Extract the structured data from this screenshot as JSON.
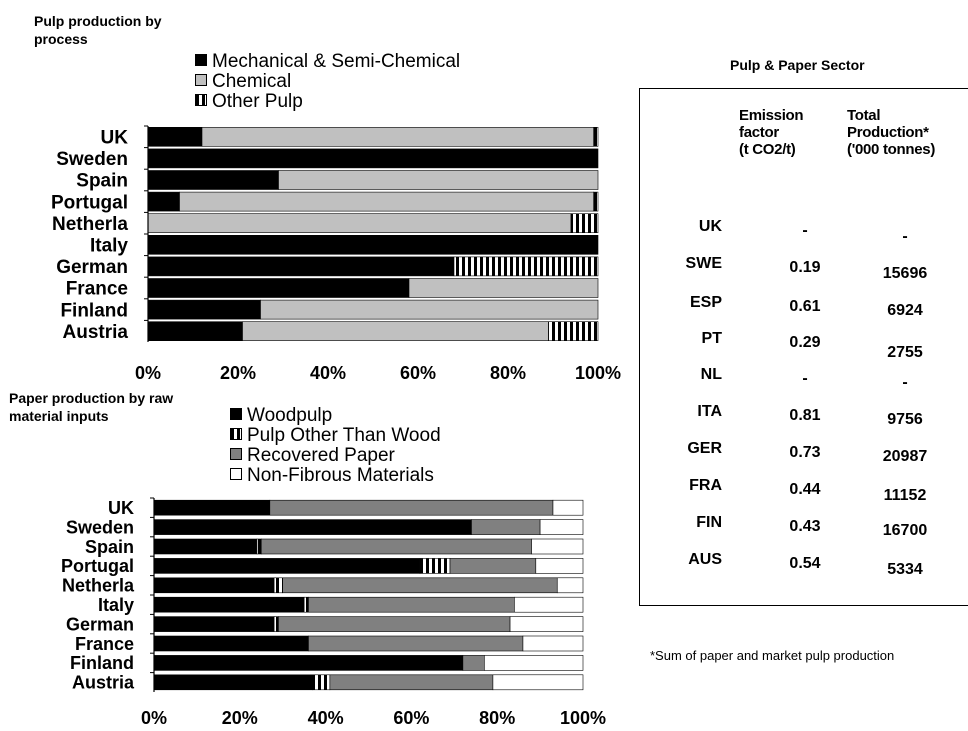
{
  "chart_data": [
    {
      "type": "bar",
      "stacked": true,
      "orientation": "horizontal",
      "title": "Pulp production by process",
      "categories": [
        "UK",
        "Sweden",
        "Spain",
        "Portugal",
        "Netherla",
        "Italy",
        "German",
        "France",
        "Finland",
        "Austria"
      ],
      "series": [
        {
          "name": "Mechanical & Semi-Chemical",
          "color": "#000000",
          "values": [
            12,
            100,
            29,
            7,
            0,
            100,
            68,
            58,
            25,
            21
          ]
        },
        {
          "name": "Chemical",
          "color": "#c0c0c0",
          "values": [
            87,
            0,
            71,
            92,
            94,
            0,
            0,
            42,
            75,
            68
          ]
        },
        {
          "name": "Other Pulp",
          "color": "stripe",
          "values": [
            1,
            0,
            0,
            1,
            6,
            0,
            32,
            0,
            0,
            11
          ]
        }
      ],
      "x_ticks": [
        "0%",
        "20%",
        "40%",
        "60%",
        "80%",
        "100%"
      ],
      "xlim": [
        0,
        100
      ],
      "grid": false
    },
    {
      "type": "bar",
      "stacked": true,
      "orientation": "horizontal",
      "title": "Paper production by raw material inputs",
      "categories": [
        "UK",
        "Sweden",
        "Spain",
        "Portugal",
        "Netherla",
        "Italy",
        "German",
        "France",
        "Finland",
        "Austria"
      ],
      "series": [
        {
          "name": "Woodpulp",
          "color": "#000000",
          "values": [
            27,
            74,
            24,
            62,
            28,
            35,
            28,
            36,
            72,
            37
          ]
        },
        {
          "name": "Pulp Other Than Wood",
          "color": "stripe",
          "values": [
            0,
            0,
            1,
            7,
            2,
            1,
            1,
            0,
            0,
            4
          ]
        },
        {
          "name": "Recovered Paper",
          "color": "#808080",
          "values": [
            66,
            16,
            63,
            20,
            64,
            48,
            54,
            50,
            5,
            38
          ]
        },
        {
          "name": "Non-Fibrous Materials",
          "color": "#ffffff",
          "values": [
            7,
            10,
            12,
            11,
            6,
            16,
            17,
            14,
            23,
            21
          ]
        }
      ],
      "x_ticks": [
        "0%",
        "20%",
        "40%",
        "60%",
        "80%",
        "100%"
      ],
      "xlim": [
        0,
        100
      ],
      "grid": false
    }
  ],
  "charts_text": {
    "top_title_line1": "Pulp production by",
    "top_title_line2": "process",
    "bottom_title_line1": "Paper production by raw",
    "bottom_title_line2": "material inputs"
  },
  "table": {
    "title": "Pulp & Paper Sector",
    "col1_header": [
      "Emission",
      "factor",
      "(t CO2/t)"
    ],
    "col2_header": [
      "Total",
      "Production*",
      "('000 tonnes)"
    ],
    "rows": [
      {
        "country": "UK",
        "factor": "-",
        "production": "-"
      },
      {
        "country": "SWE",
        "factor": "0.19",
        "production": "15696"
      },
      {
        "country": "ESP",
        "factor": "0.61",
        "production": "6924"
      },
      {
        "country": "PT",
        "factor": "0.29",
        "production": "2755"
      },
      {
        "country": "NL",
        "factor": "-",
        "production": "-"
      },
      {
        "country": "ITA",
        "factor": "0.81",
        "production": "9756"
      },
      {
        "country": "GER",
        "factor": "0.73",
        "production": "20987"
      },
      {
        "country": "FRA",
        "factor": "0.44",
        "production": "11152"
      },
      {
        "country": "FIN",
        "factor": "0.43",
        "production": "16700"
      },
      {
        "country": "AUS",
        "factor": "0.54",
        "production": "5334"
      }
    ],
    "footnote": "*Sum of paper and market pulp production"
  }
}
